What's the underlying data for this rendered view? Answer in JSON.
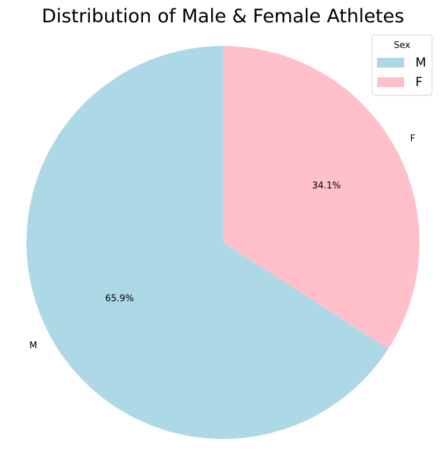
{
  "chart_data": {
    "type": "pie",
    "title": "Distribution of Male & Female Athletes",
    "slices": [
      {
        "label": "M",
        "value": 65.9,
        "pct_label": "65.9%",
        "color": "#add8e6"
      },
      {
        "label": "F",
        "value": 34.1,
        "pct_label": "34.1%",
        "color": "#ffc0cb"
      }
    ],
    "start_angle_deg": 90,
    "direction": "counterclockwise",
    "legend": {
      "title": "Sex",
      "placement": "top-right",
      "entries": [
        "M",
        "F"
      ]
    }
  }
}
